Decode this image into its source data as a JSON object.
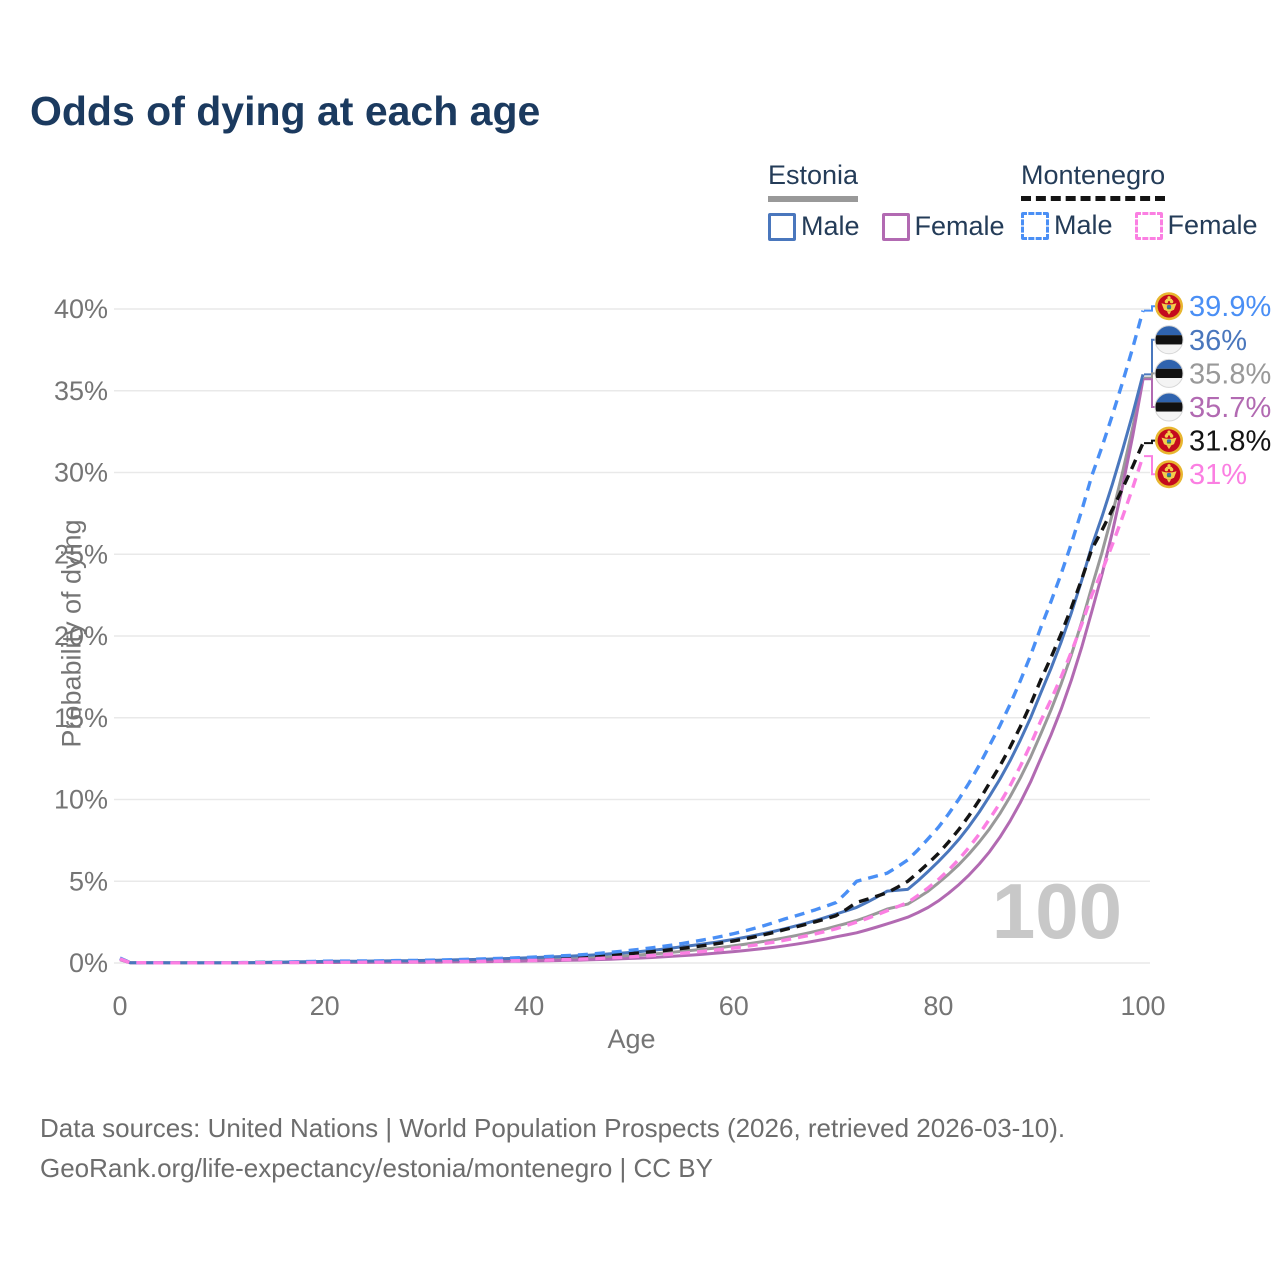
{
  "title": "Odds of dying at each age",
  "legend": {
    "groups": [
      {
        "name": "Estonia",
        "line_style": "solid",
        "underline_color": "#999999",
        "items": [
          {
            "label": "Male",
            "color": "#4a77bd"
          },
          {
            "label": "Female",
            "color": "#b26ab2"
          }
        ]
      },
      {
        "name": "Montenegro",
        "line_style": "dashed",
        "underline_color": "#141414",
        "items": [
          {
            "label": "Male",
            "color": "#4a8ff5"
          },
          {
            "label": "Female",
            "color": "#fb7fe2"
          }
        ]
      }
    ]
  },
  "chart_data": {
    "type": "line",
    "title": "Odds of dying at each age",
    "xlabel": "Age",
    "ylabel": "Probability of dying",
    "xlim": [
      0,
      100
    ],
    "ylim": [
      0,
      40
    ],
    "x_ticks": [
      0,
      20,
      40,
      60,
      80,
      100
    ],
    "y_ticks": [
      "0%",
      "5%",
      "10%",
      "15%",
      "20%",
      "25%",
      "30%",
      "35%",
      "40%"
    ],
    "grid": "horizontal",
    "legend_position": "top-right",
    "watermark": "100",
    "x": [
      0,
      1,
      5,
      10,
      15,
      20,
      25,
      30,
      35,
      40,
      45,
      50,
      55,
      60,
      65,
      70,
      72,
      75,
      77,
      79,
      80,
      85,
      90,
      95,
      100
    ],
    "series": [
      {
        "name": "Estonia",
        "sex": "Both",
        "flag": "estonia",
        "color": "#999999",
        "dash": false,
        "end_label": "35.8%",
        "end_value": 35.8,
        "values": [
          0.22,
          0.018,
          0.009,
          0.009,
          0.035,
          0.065,
          0.08,
          0.1,
          0.15,
          0.22,
          0.31,
          0.46,
          0.72,
          1.05,
          1.55,
          2.25,
          2.6,
          3.3,
          3.6,
          4.4,
          4.9,
          8.2,
          14.0,
          23.0,
          35.8
        ]
      },
      {
        "name": "Estonia Female",
        "sex": "Female",
        "flag": "estonia",
        "color": "#b26ab2",
        "dash": false,
        "end_label": "35.7%",
        "end_value": 35.7,
        "values": [
          0.2,
          0.015,
          0.008,
          0.008,
          0.02,
          0.03,
          0.04,
          0.05,
          0.08,
          0.12,
          0.18,
          0.28,
          0.45,
          0.7,
          1.05,
          1.6,
          1.85,
          2.4,
          2.8,
          3.4,
          3.8,
          6.8,
          12.5,
          21.5,
          35.7
        ]
      },
      {
        "name": "Estonia Male",
        "sex": "Male",
        "flag": "estonia",
        "color": "#4a77bd",
        "dash": false,
        "end_label": "36%",
        "end_value": 36,
        "values": [
          0.25,
          0.02,
          0.01,
          0.01,
          0.05,
          0.1,
          0.12,
          0.16,
          0.22,
          0.32,
          0.45,
          0.65,
          1.0,
          1.45,
          2.1,
          3.0,
          3.4,
          4.4,
          4.5,
          5.6,
          6.2,
          10.2,
          16.5,
          25.5,
          36
        ]
      },
      {
        "name": "Montenegro",
        "sex": "Both",
        "flag": "montenegro",
        "color": "#141414",
        "dash": true,
        "end_label": "31.8%",
        "end_value": 31.8,
        "values": [
          0.28,
          0.019,
          0.011,
          0.011,
          0.04,
          0.075,
          0.09,
          0.12,
          0.17,
          0.25,
          0.37,
          0.58,
          0.9,
          1.35,
          2.05,
          2.9,
          3.7,
          4.3,
          5.0,
          6.1,
          6.7,
          11.0,
          17.3,
          25.3,
          31.8
        ]
      },
      {
        "name": "Montenegro Male",
        "sex": "Male",
        "flag": "montenegro",
        "color": "#4a8ff5",
        "dash": true,
        "end_label": "39.9%",
        "end_value": 39.9,
        "values": [
          0.3,
          0.02,
          0.012,
          0.012,
          0.055,
          0.11,
          0.13,
          0.17,
          0.24,
          0.35,
          0.5,
          0.78,
          1.2,
          1.8,
          2.7,
          3.7,
          5.0,
          5.5,
          6.3,
          7.6,
          8.3,
          13.3,
          20.5,
          29.8,
          39.9
        ]
      },
      {
        "name": "Montenegro Female",
        "sex": "Female",
        "flag": "montenegro",
        "color": "#fb7fe2",
        "dash": true,
        "end_label": "31%",
        "end_value": 31,
        "values": [
          0.25,
          0.018,
          0.01,
          0.01,
          0.025,
          0.04,
          0.05,
          0.07,
          0.1,
          0.15,
          0.24,
          0.38,
          0.6,
          0.92,
          1.4,
          2.1,
          2.5,
          3.2,
          3.7,
          4.6,
          5.1,
          8.8,
          14.8,
          22.5,
          31
        ]
      }
    ]
  },
  "footer": {
    "line1": "Data sources: United Nations | World Population Prospects (2026, retrieved 2026-03-10).",
    "line2": "GeoRank.org/life-expectancy/estonia/montenegro | CC BY"
  }
}
